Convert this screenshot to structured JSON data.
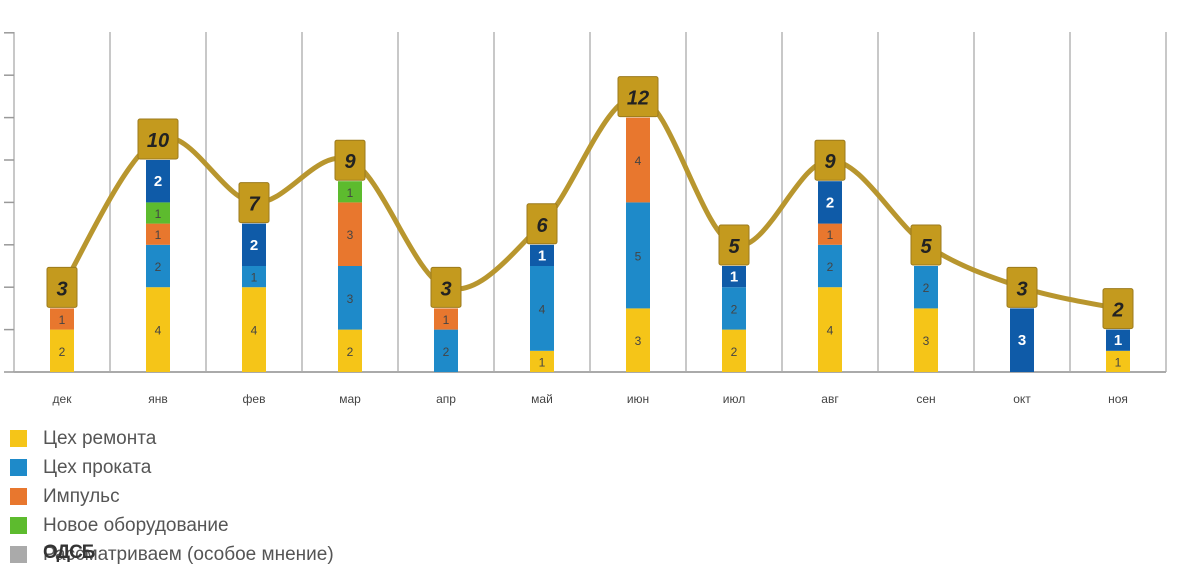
{
  "chart_data": {
    "type": "bar",
    "stacked": true,
    "categories": [
      "дек",
      "янв",
      "фев",
      "мар",
      "апр",
      "май",
      "июн",
      "июл",
      "авг",
      "сен",
      "окт",
      "ноя"
    ],
    "ylim": [
      0,
      16
    ],
    "series": [
      {
        "name": "Цех ремонта",
        "color": "#F5C518",
        "label_color": "#444444",
        "values": [
          2,
          4,
          4,
          2,
          0,
          1,
          3,
          2,
          4,
          3,
          0,
          1
        ]
      },
      {
        "name": "Цех проката",
        "color": "#1E8AC9",
        "label_color": "#444444",
        "values": [
          0,
          2,
          1,
          3,
          2,
          4,
          5,
          2,
          2,
          2,
          0,
          0
        ]
      },
      {
        "name": "Импульс",
        "color": "#E8772E",
        "label_color": "#444444",
        "values": [
          1,
          1,
          0,
          3,
          1,
          0,
          4,
          0,
          1,
          0,
          0,
          0
        ]
      },
      {
        "name": "Новое оборудование",
        "color": "#5DBB2E",
        "label_color": "#444444",
        "values": [
          0,
          1,
          0,
          1,
          0,
          0,
          0,
          0,
          0,
          0,
          0,
          0
        ]
      },
      {
        "name": "ОДСБ",
        "color": "#0F5BA8",
        "label_color": "#ffffff",
        "values": [
          0,
          2,
          2,
          0,
          0,
          1,
          0,
          1,
          2,
          0,
          3,
          1
        ]
      }
    ],
    "totals": [
      3,
      10,
      7,
      9,
      3,
      6,
      12,
      5,
      9,
      5,
      3,
      2
    ],
    "total_line_color": "#B8962E",
    "total_box_color": "#C49A1E",
    "legend": [
      {
        "label": "Цех ремонта",
        "color": "#F5C518"
      },
      {
        "label": "Цех проката",
        "color": "#1E8AC9"
      },
      {
        "label": "Импульс",
        "color": "#E8772E"
      },
      {
        "label": "Новое оборудование",
        "color": "#5DBB2E"
      },
      {
        "label": "Рассматриваем (особое мнение)",
        "color": "#AAAAAA",
        "overlap_label": "ОДСБ"
      }
    ],
    "grid": true,
    "legend_position": "bottom-left"
  }
}
